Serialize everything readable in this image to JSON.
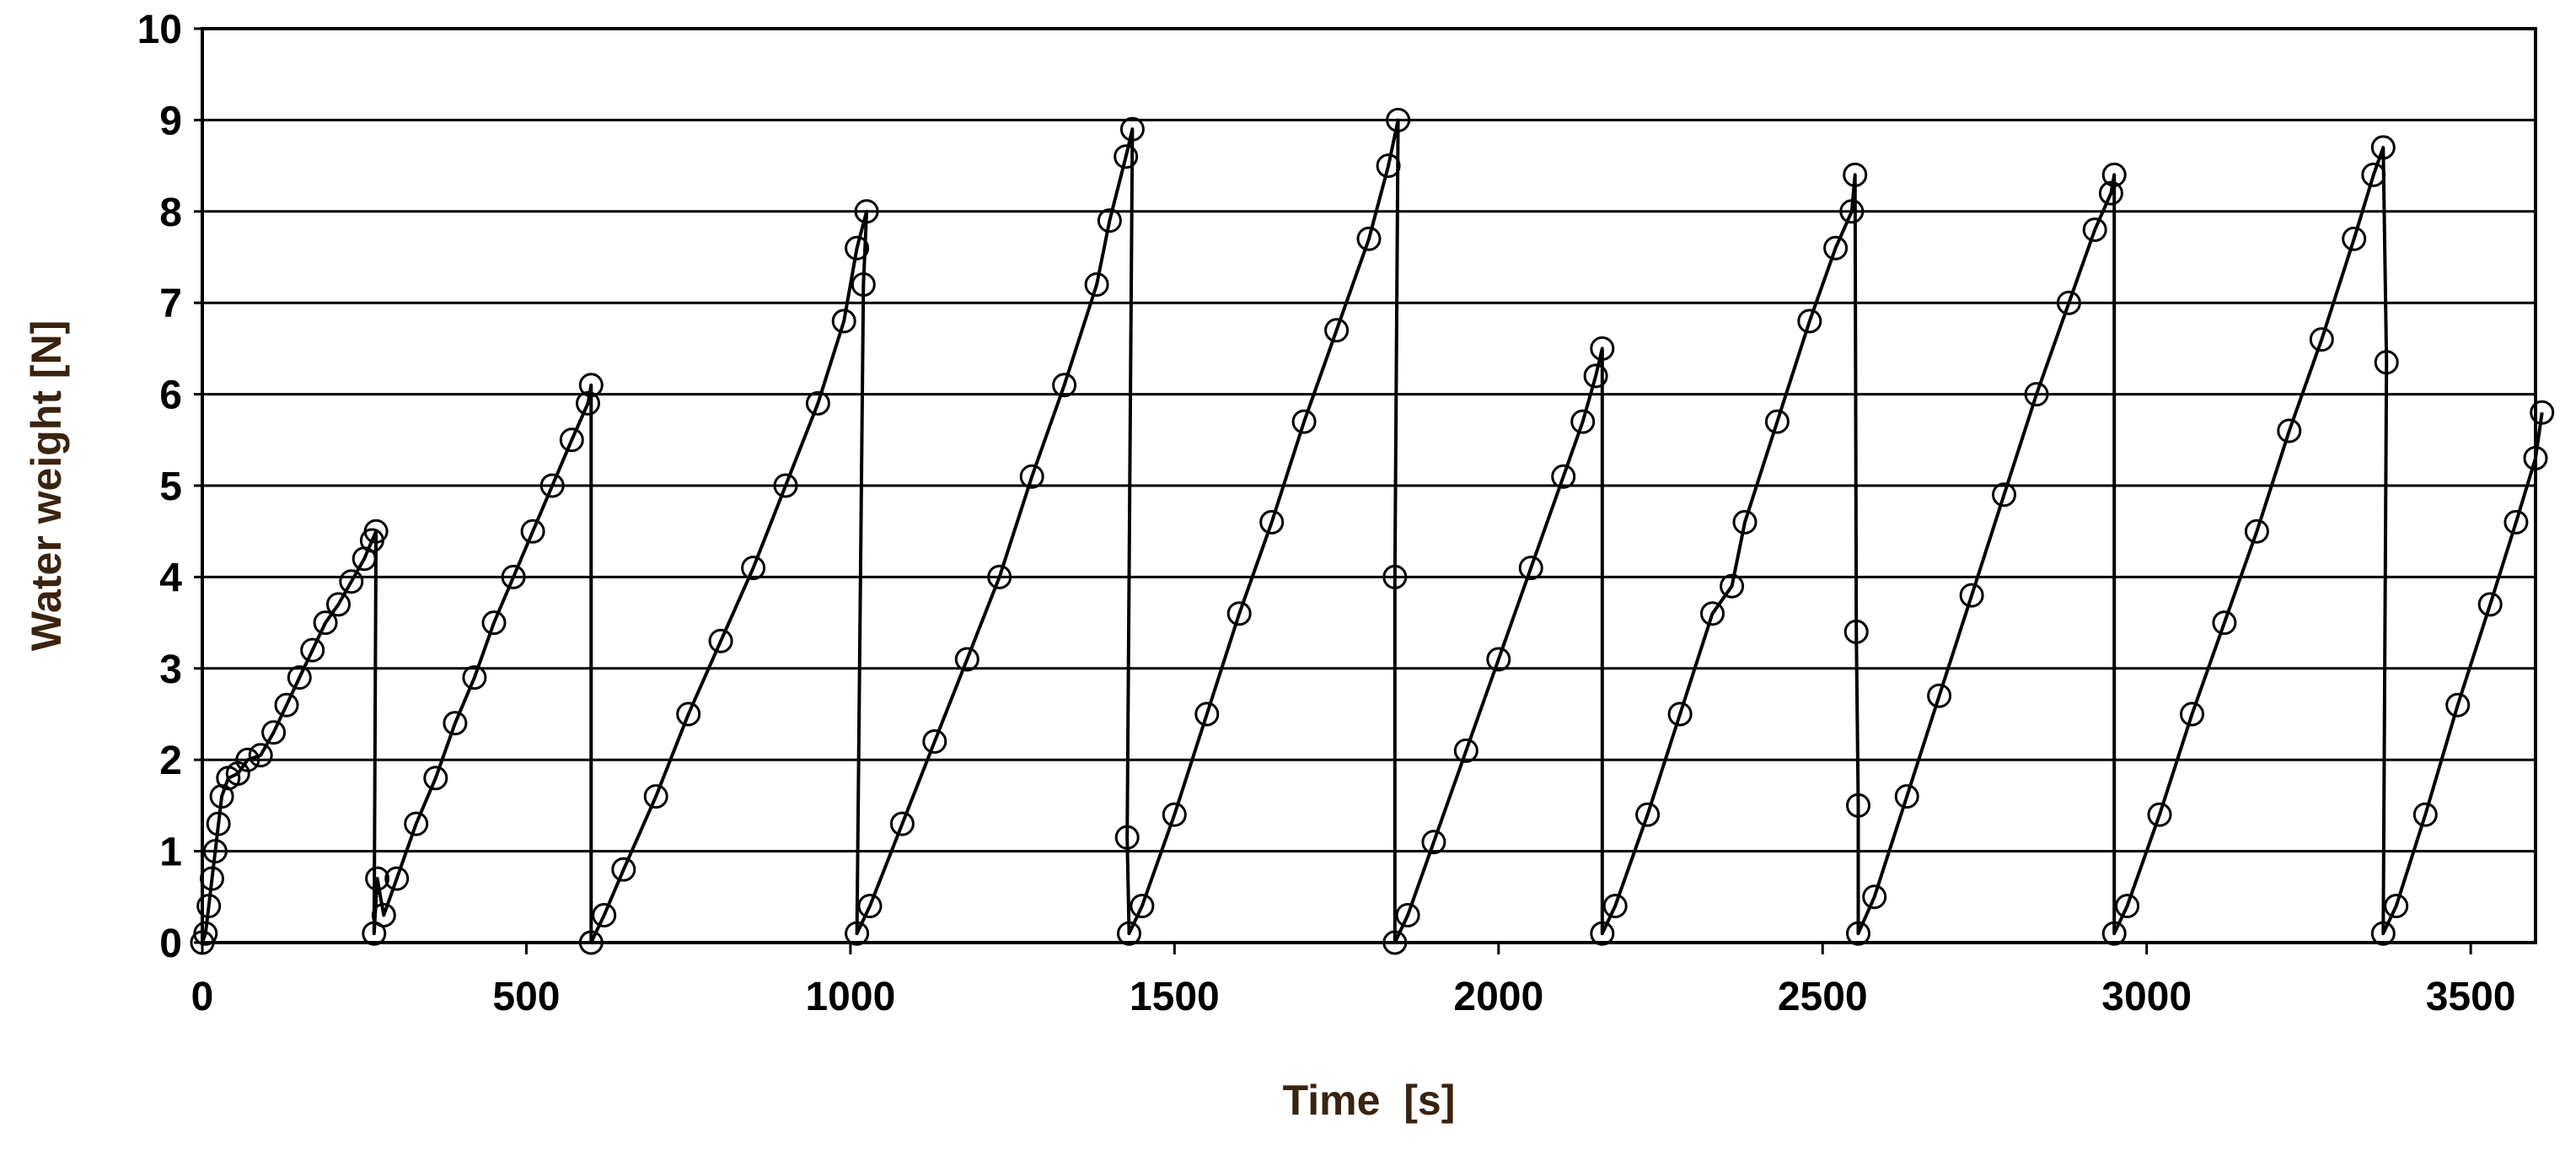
{
  "chart_data": {
    "type": "scatter",
    "title": "",
    "xlabel": "Time  [s]",
    "ylabel": "Water weight [N]",
    "xlim": [
      0,
      3600
    ],
    "ylim": [
      0,
      10
    ],
    "x_ticks": [
      0,
      500,
      1000,
      1500,
      2000,
      2500,
      3000,
      3500
    ],
    "y_ticks": [
      0,
      1,
      2,
      3,
      4,
      5,
      6,
      7,
      8,
      9,
      10
    ],
    "grid": "horizontal",
    "legend": "none",
    "marker": "open-circle",
    "connect_with_line": true,
    "colors": {
      "marker": "#000000",
      "line": "#000000",
      "grid": "#000000",
      "axis_title": "#3a2410",
      "tick_label": "#000000"
    },
    "series": [
      {
        "points": [
          [
            0,
            0.0
          ],
          [
            5,
            0.1
          ],
          [
            10,
            0.4
          ],
          [
            15,
            0.7
          ],
          [
            20,
            1.0
          ],
          [
            25,
            1.3
          ],
          [
            30,
            1.6
          ],
          [
            40,
            1.8
          ],
          [
            55,
            1.85
          ],
          [
            70,
            2.0
          ],
          [
            90,
            2.05
          ],
          [
            110,
            2.3
          ],
          [
            130,
            2.6
          ],
          [
            150,
            2.9
          ],
          [
            170,
            3.2
          ],
          [
            190,
            3.5
          ],
          [
            210,
            3.7
          ],
          [
            230,
            3.95
          ],
          [
            250,
            4.2
          ],
          [
            262,
            4.4
          ],
          [
            268,
            4.5
          ],
          [
            265,
            0.1
          ],
          [
            270,
            0.7
          ],
          [
            280,
            0.3
          ],
          [
            300,
            0.7
          ],
          [
            330,
            1.3
          ],
          [
            360,
            1.8
          ],
          [
            390,
            2.4
          ],
          [
            420,
            2.9
          ],
          [
            450,
            3.5
          ],
          [
            480,
            4.0
          ],
          [
            510,
            4.5
          ],
          [
            540,
            5.0
          ],
          [
            570,
            5.5
          ],
          [
            595,
            5.9
          ],
          [
            600,
            6.1
          ],
          [
            600,
            0.0
          ],
          [
            620,
            0.3
          ],
          [
            650,
            0.8
          ],
          [
            700,
            1.6
          ],
          [
            750,
            2.5
          ],
          [
            800,
            3.3
          ],
          [
            850,
            4.1
          ],
          [
            900,
            5.0
          ],
          [
            950,
            5.9
          ],
          [
            990,
            6.8
          ],
          [
            1010,
            7.6
          ],
          [
            1025,
            8.0
          ],
          [
            1020,
            7.2
          ],
          [
            1010,
            0.1
          ],
          [
            1030,
            0.4
          ],
          [
            1080,
            1.3
          ],
          [
            1130,
            2.2
          ],
          [
            1180,
            3.1
          ],
          [
            1230,
            4.0
          ],
          [
            1280,
            5.1
          ],
          [
            1330,
            6.1
          ],
          [
            1380,
            7.2
          ],
          [
            1400,
            7.9
          ],
          [
            1425,
            8.6
          ],
          [
            1435,
            8.9
          ],
          [
            1427,
            1.15
          ],
          [
            1430,
            0.1
          ],
          [
            1450,
            0.4
          ],
          [
            1500,
            1.4
          ],
          [
            1550,
            2.5
          ],
          [
            1600,
            3.6
          ],
          [
            1650,
            4.6
          ],
          [
            1700,
            5.7
          ],
          [
            1750,
            6.7
          ],
          [
            1800,
            7.7
          ],
          [
            1830,
            8.5
          ],
          [
            1845,
            9.0
          ],
          [
            1840,
            4.0
          ],
          [
            1840,
            0.0
          ],
          [
            1860,
            0.3
          ],
          [
            1900,
            1.1
          ],
          [
            1950,
            2.1
          ],
          [
            2000,
            3.1
          ],
          [
            2050,
            4.1
          ],
          [
            2100,
            5.1
          ],
          [
            2130,
            5.7
          ],
          [
            2150,
            6.2
          ],
          [
            2160,
            6.5
          ],
          [
            2160,
            0.1
          ],
          [
            2180,
            0.4
          ],
          [
            2230,
            1.4
          ],
          [
            2280,
            2.5
          ],
          [
            2330,
            3.6
          ],
          [
            2360,
            3.9
          ],
          [
            2380,
            4.6
          ],
          [
            2430,
            5.7
          ],
          [
            2480,
            6.8
          ],
          [
            2520,
            7.6
          ],
          [
            2545,
            8.0
          ],
          [
            2550,
            8.4
          ],
          [
            2552,
            3.4
          ],
          [
            2555,
            1.5
          ],
          [
            2555,
            0.1
          ],
          [
            2580,
            0.5
          ],
          [
            2630,
            1.6
          ],
          [
            2680,
            2.7
          ],
          [
            2730,
            3.8
          ],
          [
            2780,
            4.9
          ],
          [
            2830,
            6.0
          ],
          [
            2880,
            7.0
          ],
          [
            2920,
            7.8
          ],
          [
            2945,
            8.2
          ],
          [
            2950,
            8.4
          ],
          [
            2950,
            0.1
          ],
          [
            2970,
            0.4
          ],
          [
            3020,
            1.4
          ],
          [
            3070,
            2.5
          ],
          [
            3120,
            3.5
          ],
          [
            3170,
            4.5
          ],
          [
            3220,
            5.6
          ],
          [
            3270,
            6.6
          ],
          [
            3320,
            7.7
          ],
          [
            3350,
            8.4
          ],
          [
            3365,
            8.7
          ],
          [
            3370,
            6.35
          ],
          [
            3365,
            0.1
          ],
          [
            3385,
            0.4
          ],
          [
            3430,
            1.4
          ],
          [
            3480,
            2.6
          ],
          [
            3530,
            3.7
          ],
          [
            3570,
            4.6
          ],
          [
            3600,
            5.3
          ],
          [
            3610,
            5.8
          ]
        ]
      }
    ]
  }
}
